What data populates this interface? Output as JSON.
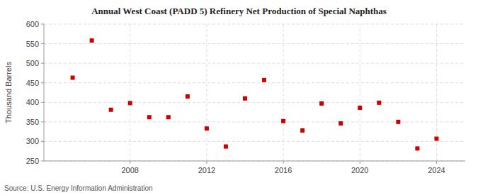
{
  "chart_data": {
    "type": "scatter",
    "title": "Annual West Coast (PADD 5) Refinery Net Production of Special Naphthas",
    "ylabel": "Thousand Barrels",
    "source": "Source: U.S. Energy Information Administration",
    "x": [
      2005,
      2006,
      2007,
      2008,
      2009,
      2010,
      2011,
      2012,
      2013,
      2014,
      2015,
      2016,
      2017,
      2018,
      2019,
      2020,
      2021,
      2022,
      2023,
      2024
    ],
    "values": [
      463,
      558,
      381,
      398,
      362,
      362,
      415,
      333,
      287,
      410,
      457,
      352,
      328,
      397,
      346,
      386,
      399,
      350,
      282,
      307
    ],
    "color": "#cc0000",
    "marker": "square",
    "xlim": [
      2003.5,
      2025.5
    ],
    "xticks": [
      2008,
      2012,
      2016,
      2020,
      2024
    ],
    "ylim": [
      250,
      600
    ],
    "yticks": [
      250,
      300,
      350,
      400,
      450,
      500,
      550,
      600
    ],
    "grid": true
  }
}
